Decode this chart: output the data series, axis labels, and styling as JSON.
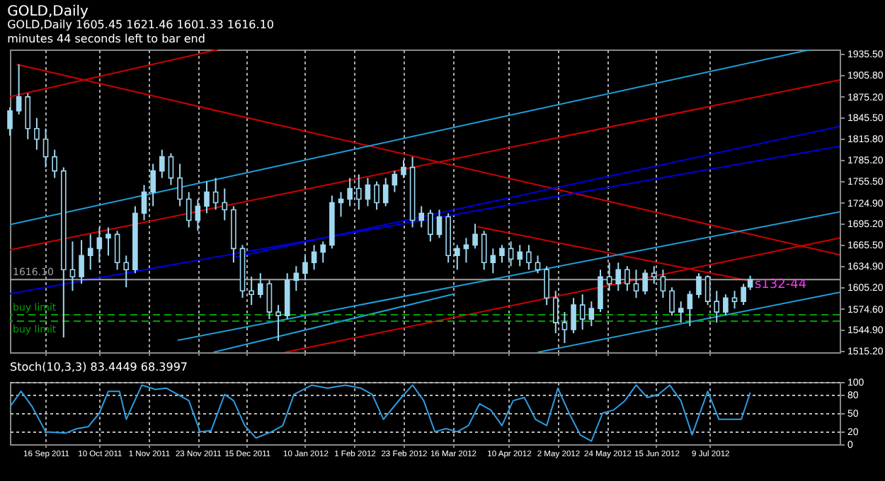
{
  "chart_data": [
    {
      "type": "candlestick",
      "title": "GOLD,Daily",
      "subtitle": "GOLD,Daily 1605.45 1621.46 1601.33 1616.10",
      "annotations": [
        "minutes 44 seconds left to bar end",
        {
          "text": "s132-44",
          "x": "2012-07-29",
          "y": 1610
        }
      ],
      "color": "#a0d8f0",
      "x": [
        "2011-08-31",
        "2011-09-04",
        "2011-09-08",
        "2011-09-12",
        "2011-09-16",
        "2011-09-20",
        "2011-09-24",
        "2011-09-28",
        "2011-10-02",
        "2011-10-06",
        "2011-10-10",
        "2011-10-14",
        "2011-10-18",
        "2011-10-22",
        "2011-10-26",
        "2011-10-30",
        "2011-11-03",
        "2011-11-07",
        "2011-11-11",
        "2011-11-15",
        "2011-11-19",
        "2011-11-23",
        "2011-11-27",
        "2011-12-01",
        "2011-12-05",
        "2011-12-09",
        "2011-12-13",
        "2011-12-17",
        "2011-12-21",
        "2011-12-25",
        "2011-12-29",
        "2012-01-02",
        "2012-01-06",
        "2012-01-10",
        "2012-01-14",
        "2012-01-18",
        "2012-01-22",
        "2012-01-26",
        "2012-01-30",
        "2012-02-03",
        "2012-02-07",
        "2012-02-11",
        "2012-02-15",
        "2012-02-19",
        "2012-02-23",
        "2012-02-27",
        "2012-03-02",
        "2012-03-06",
        "2012-03-10",
        "2012-03-14",
        "2012-03-18",
        "2012-03-22",
        "2012-03-26",
        "2012-03-30",
        "2012-04-03",
        "2012-04-07",
        "2012-04-11",
        "2012-04-15",
        "2012-04-19",
        "2012-04-23",
        "2012-04-27",
        "2012-05-01",
        "2012-05-05",
        "2012-05-09",
        "2012-05-13",
        "2012-05-17",
        "2012-05-21",
        "2012-05-25",
        "2012-05-29",
        "2012-06-02",
        "2012-06-06",
        "2012-06-10",
        "2012-06-14",
        "2012-06-18",
        "2012-06-22",
        "2012-06-26",
        "2012-06-30",
        "2012-07-04",
        "2012-07-08",
        "2012-07-12",
        "2012-07-16",
        "2012-07-20",
        "2012-07-24",
        "2012-07-27"
      ],
      "ohlc": [
        [
          1830,
          1860,
          1820,
          1855
        ],
        [
          1855,
          1921,
          1850,
          1875
        ],
        [
          1875,
          1880,
          1815,
          1830
        ],
        [
          1830,
          1845,
          1800,
          1815
        ],
        [
          1815,
          1830,
          1775,
          1790
        ],
        [
          1790,
          1800,
          1760,
          1770
        ],
        [
          1770,
          1775,
          1534,
          1630
        ],
        [
          1630,
          1670,
          1600,
          1620
        ],
        [
          1620,
          1672,
          1610,
          1650
        ],
        [
          1650,
          1680,
          1630,
          1660
        ],
        [
          1660,
          1690,
          1640,
          1675
        ],
        [
          1675,
          1690,
          1650,
          1680
        ],
        [
          1680,
          1685,
          1630,
          1640
        ],
        [
          1640,
          1650,
          1605,
          1630
        ],
        [
          1630,
          1720,
          1625,
          1710
        ],
        [
          1710,
          1750,
          1700,
          1740
        ],
        [
          1740,
          1780,
          1720,
          1770
        ],
        [
          1770,
          1800,
          1760,
          1790
        ],
        [
          1790,
          1795,
          1750,
          1760
        ],
        [
          1760,
          1780,
          1720,
          1730
        ],
        [
          1730,
          1740,
          1690,
          1700
        ],
        [
          1700,
          1730,
          1685,
          1720
        ],
        [
          1720,
          1755,
          1710,
          1740
        ],
        [
          1740,
          1760,
          1715,
          1725
        ],
        [
          1725,
          1745,
          1700,
          1715
        ],
        [
          1715,
          1720,
          1640,
          1660
        ],
        [
          1660,
          1665,
          1590,
          1600
        ],
        [
          1600,
          1620,
          1580,
          1595
        ],
        [
          1595,
          1625,
          1590,
          1610
        ],
        [
          1610,
          1615,
          1560,
          1570
        ],
        [
          1570,
          1580,
          1529,
          1565
        ],
        [
          1565,
          1625,
          1560,
          1615
        ],
        [
          1615,
          1635,
          1600,
          1625
        ],
        [
          1625,
          1650,
          1615,
          1640
        ],
        [
          1640,
          1665,
          1630,
          1655
        ],
        [
          1655,
          1670,
          1640,
          1665
        ],
        [
          1665,
          1735,
          1660,
          1725
        ],
        [
          1725,
          1740,
          1705,
          1730
        ],
        [
          1730,
          1760,
          1720,
          1745
        ],
        [
          1745,
          1765,
          1715,
          1730
        ],
        [
          1730,
          1760,
          1720,
          1750
        ],
        [
          1750,
          1755,
          1715,
          1725
        ],
        [
          1725,
          1760,
          1720,
          1750
        ],
        [
          1750,
          1770,
          1740,
          1765
        ],
        [
          1765,
          1785,
          1760,
          1775
        ],
        [
          1775,
          1790,
          1690,
          1700
        ],
        [
          1700,
          1720,
          1690,
          1710
        ],
        [
          1710,
          1715,
          1670,
          1680
        ],
        [
          1680,
          1715,
          1675,
          1705
        ],
        [
          1705,
          1710,
          1640,
          1650
        ],
        [
          1650,
          1665,
          1630,
          1660
        ],
        [
          1660,
          1675,
          1640,
          1665
        ],
        [
          1665,
          1695,
          1660,
          1680
        ],
        [
          1680,
          1685,
          1630,
          1640
        ],
        [
          1640,
          1660,
          1625,
          1650
        ],
        [
          1650,
          1665,
          1640,
          1660
        ],
        [
          1660,
          1670,
          1635,
          1645
        ],
        [
          1645,
          1665,
          1635,
          1655
        ],
        [
          1655,
          1665,
          1630,
          1640
        ],
        [
          1640,
          1650,
          1625,
          1630
        ],
        [
          1630,
          1635,
          1580,
          1590
        ],
        [
          1590,
          1600,
          1540,
          1555
        ],
        [
          1555,
          1570,
          1526,
          1545
        ],
        [
          1545,
          1590,
          1540,
          1580
        ],
        [
          1580,
          1595,
          1545,
          1560
        ],
        [
          1560,
          1585,
          1550,
          1575
        ],
        [
          1575,
          1630,
          1570,
          1620
        ],
        [
          1620,
          1640,
          1600,
          1610
        ],
        [
          1610,
          1640,
          1600,
          1630
        ],
        [
          1630,
          1635,
          1600,
          1610
        ],
        [
          1610,
          1630,
          1590,
          1600
        ],
        [
          1600,
          1630,
          1595,
          1625
        ],
        [
          1625,
          1635,
          1610,
          1620
        ],
        [
          1620,
          1630,
          1590,
          1600
        ],
        [
          1600,
          1605,
          1565,
          1570
        ],
        [
          1570,
          1585,
          1555,
          1575
        ],
        [
          1575,
          1600,
          1550,
          1595
        ],
        [
          1595,
          1625,
          1590,
          1620
        ],
        [
          1620,
          1622,
          1580,
          1585
        ],
        [
          1585,
          1600,
          1555,
          1570
        ],
        [
          1570,
          1595,
          1565,
          1590
        ],
        [
          1590,
          1600,
          1575,
          1585
        ],
        [
          1585,
          1610,
          1580,
          1605
        ],
        [
          1605.45,
          1621.46,
          1601.33,
          1616.1
        ]
      ],
      "series": [
        {
          "type": "line",
          "color": "#d00000",
          "x": [
            "2011-09-03",
            "2012-09-05"
          ],
          "values": [
            1921,
            1651
          ]
        },
        {
          "type": "line",
          "color": "#d00000",
          "x": [
            "2012-03-27",
            "2012-07-27"
          ],
          "values": [
            1691,
            1614
          ]
        },
        {
          "type": "line",
          "color": "#d00000",
          "x": [
            "2011-08-31",
            "2011-12-02"
          ],
          "values": [
            1875,
            1942
          ]
        },
        {
          "type": "line",
          "color": "#d00000",
          "x": [
            "2011-08-31",
            "2012-09-05"
          ],
          "values": [
            1658,
            1899
          ]
        },
        {
          "type": "line",
          "color": "#d00000",
          "x": [
            "2012-01-01",
            "2012-09-05"
          ],
          "values": [
            1513,
            1675
          ]
        },
        {
          "type": "line",
          "color": "#0000e0",
          "x": [
            "2011-08-31",
            "2012-09-05"
          ],
          "values": [
            1596,
            1805
          ]
        },
        {
          "type": "line",
          "color": "#0000e0",
          "x": [
            "2011-12-10",
            "2012-09-05"
          ],
          "values": [
            1648,
            1833
          ]
        },
        {
          "type": "line",
          "color": "#1e9fd8",
          "x": [
            "2011-08-31",
            "2012-08-23"
          ],
          "values": [
            1694,
            1942
          ]
        },
        {
          "type": "line",
          "color": "#1e9fd8",
          "x": [
            "2011-11-14",
            "2012-09-05"
          ],
          "values": [
            1530,
            1712
          ]
        },
        {
          "type": "line",
          "color": "#1e9fd8",
          "x": [
            "2011-11-30",
            "2012-03-17"
          ],
          "values": [
            1513,
            1596
          ]
        },
        {
          "type": "line",
          "color": "#1e9fd8",
          "x": [
            "2012-04-23",
            "2012-09-05"
          ],
          "values": [
            1513,
            1598
          ]
        }
      ],
      "ref_lines": [
        {
          "axis": "y",
          "value": 1616.1,
          "label": "1616.10",
          "color": "#a0a0a0"
        },
        {
          "axis": "y",
          "value": 1566,
          "label": "buy limit",
          "color": "#00a000",
          "line_style": "dashed"
        },
        {
          "axis": "y",
          "value": 1557,
          "label": "buy limit",
          "color": "#00a000",
          "line_style": "dashed"
        }
      ],
      "xlim": [
        "2011-08-31",
        "2012-09-05"
      ],
      "xticks": [
        {
          "value": "2011-09-16",
          "label": null
        },
        {
          "value": "2011-10-10",
          "label": null
        },
        {
          "value": "2011-11-01",
          "label": null
        },
        {
          "value": "2011-11-23",
          "label": null
        },
        {
          "value": "2011-12-15",
          "label": null
        },
        {
          "value": "2012-01-10",
          "label": null
        },
        {
          "value": "2012-02-01",
          "label": null
        },
        {
          "value": "2012-02-23",
          "label": null
        },
        {
          "value": "2012-03-16",
          "label": null
        },
        {
          "value": "2012-04-10",
          "label": null
        },
        {
          "value": "2012-05-02",
          "label": null
        },
        {
          "value": "2012-05-24",
          "label": null
        },
        {
          "value": "2012-06-15",
          "label": null
        },
        {
          "value": "2012-07-09",
          "label": null
        }
      ],
      "ylim": [
        1513,
        1942
      ],
      "yticks": [
        {
          "value": 1935.5,
          "label": "1935.50"
        },
        {
          "value": 1905.8,
          "label": "1905.80"
        },
        {
          "value": 1875.2,
          "label": "1875.20"
        },
        {
          "value": 1845.5,
          "label": "1845.50"
        },
        {
          "value": 1815.8,
          "label": "1815.80"
        },
        {
          "value": 1785.2,
          "label": "1785.20"
        },
        {
          "value": 1755.5,
          "label": "1755.50"
        },
        {
          "value": 1724.9,
          "label": "1724.90"
        },
        {
          "value": 1695.2,
          "label": "1695.20"
        },
        {
          "value": 1665.5,
          "label": "1665.50"
        },
        {
          "value": 1634.9,
          "label": "1634.90"
        },
        {
          "value": 1605.2,
          "label": "1605.20"
        },
        {
          "value": 1574.6,
          "label": "1574.60"
        },
        {
          "value": 1544.9,
          "label": "1544.90"
        },
        {
          "value": 1515.2,
          "label": "1515.20"
        }
      ],
      "tick_labels": "y",
      "grid": "x"
    },
    {
      "type": "line",
      "title": "Stoch(10,3,3) 83.4449 68.3997",
      "series": [
        {
          "color": "#2e9be0",
          "x": [
            "2011-08-31",
            "2011-09-05",
            "2011-09-10",
            "2011-09-16",
            "2011-09-25",
            "2011-09-30",
            "2011-10-05",
            "2011-10-10",
            "2011-10-14",
            "2011-10-19",
            "2011-10-22",
            "2011-10-29",
            "2011-11-04",
            "2011-11-09",
            "2011-11-14",
            "2011-11-19",
            "2011-11-24",
            "2011-11-29",
            "2011-12-05",
            "2011-12-09",
            "2011-12-14",
            "2011-12-19",
            "2011-12-26",
            "2011-12-31",
            "2012-01-05",
            "2012-01-13",
            "2012-01-20",
            "2012-01-28",
            "2012-02-04",
            "2012-02-09",
            "2012-02-14",
            "2012-02-22",
            "2012-02-27",
            "2012-03-03",
            "2012-03-08",
            "2012-03-13",
            "2012-03-18",
            "2012-03-23",
            "2012-03-28",
            "2012-04-02",
            "2012-04-07",
            "2012-04-12",
            "2012-04-17",
            "2012-04-22",
            "2012-04-27",
            "2012-05-02",
            "2012-05-07",
            "2012-05-12",
            "2012-05-17",
            "2012-05-22",
            "2012-05-27",
            "2012-06-01",
            "2012-06-06",
            "2012-06-11",
            "2012-06-16",
            "2012-06-21",
            "2012-06-26",
            "2012-07-01",
            "2012-07-08",
            "2012-07-13",
            "2012-07-18",
            "2012-07-23",
            "2012-07-27"
          ],
          "values": [
            60,
            85,
            60,
            20,
            18,
            25,
            28,
            50,
            85,
            85,
            40,
            95,
            88,
            90,
            80,
            70,
            20,
            22,
            80,
            70,
            30,
            10,
            20,
            30,
            80,
            95,
            90,
            95,
            90,
            80,
            40,
            75,
            95,
            70,
            20,
            25,
            20,
            30,
            65,
            55,
            30,
            70,
            75,
            40,
            30,
            90,
            50,
            15,
            5,
            50,
            55,
            70,
            95,
            75,
            80,
            95,
            70,
            15,
            85,
            40,
            40,
            40,
            83
          ]
        }
      ],
      "xlim": [
        "2011-08-31",
        "2012-09-05"
      ],
      "xticks": [
        {
          "value": "2011-09-16",
          "label": "16 Sep 2011"
        },
        {
          "value": "2011-10-10",
          "label": "10 Oct 2011"
        },
        {
          "value": "2011-11-01",
          "label": "1 Nov 2011"
        },
        {
          "value": "2011-11-23",
          "label": "23 Nov 2011"
        },
        {
          "value": "2011-12-15",
          "label": "15 Dec 2011"
        },
        {
          "value": "2012-01-10",
          "label": "10 Jan 2012"
        },
        {
          "value": "2012-02-01",
          "label": "1 Feb 2012"
        },
        {
          "value": "2012-02-23",
          "label": "23 Feb 2012"
        },
        {
          "value": "2012-03-16",
          "label": "16 Mar 2012"
        },
        {
          "value": "2012-04-10",
          "label": "10 Apr 2012"
        },
        {
          "value": "2012-05-02",
          "label": "2 May 2012"
        },
        {
          "value": "2012-05-24",
          "label": "24 May 2012"
        },
        {
          "value": "2012-06-15",
          "label": "15 Jun 2012"
        },
        {
          "value": "2012-07-09",
          "label": "9 Jul 2012"
        }
      ],
      "ylim": [
        0,
        100
      ],
      "yticks": [
        0,
        20,
        50,
        80,
        100
      ],
      "grid": true
    }
  ]
}
